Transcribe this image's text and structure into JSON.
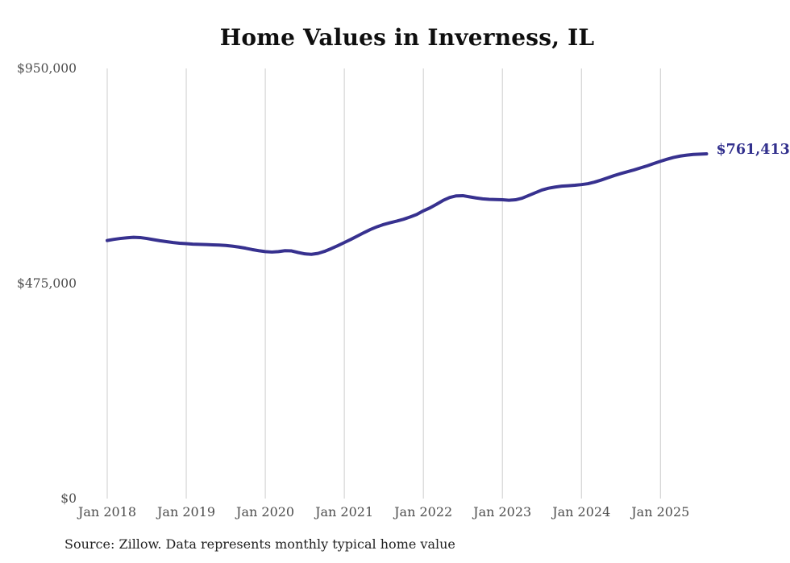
{
  "title": "Home Values in Inverness, IL",
  "current_value_label": "$761,413",
  "source_note": "Source: Zillow. Data represents monthly typical home value",
  "colors": {
    "line": "#37318f",
    "value_label": "#32308d",
    "grid": "#cccccc",
    "tick_text": "#4d4d4d",
    "title_text": "#0f0f0f",
    "source_text": "#222222",
    "background": "#ffffff"
  },
  "chart_data": {
    "type": "line",
    "title": "Home Values in Inverness, IL",
    "xlabel": "",
    "ylabel": "",
    "ylim": [
      0,
      950000
    ],
    "grid": "vertical-only",
    "legend": "none",
    "start_month": "2018-01",
    "end_month": "2025-08",
    "y_ticks": [
      {
        "value": 0,
        "label": "$0"
      },
      {
        "value": 475000,
        "label": "$475,000"
      },
      {
        "value": 950000,
        "label": "$950,000"
      }
    ],
    "x_ticks": [
      "Jan 2018",
      "Jan 2019",
      "Jan 2020",
      "Jan 2021",
      "Jan 2022",
      "Jan 2023",
      "Jan 2024",
      "Jan 2025"
    ],
    "x_tick_month_indices": [
      0,
      12,
      24,
      36,
      48,
      60,
      72,
      84
    ],
    "series": [
      {
        "name": "Typical home value (monthly)",
        "last_value": 761413,
        "values": [
          570000,
          572500,
          574500,
          576000,
          577000,
          576500,
          574500,
          572000,
          569500,
          567500,
          565500,
          564000,
          563000,
          562000,
          561500,
          561000,
          560500,
          560000,
          559000,
          557500,
          555500,
          553000,
          550000,
          547500,
          545500,
          544500,
          545500,
          547500,
          547000,
          543500,
          540500,
          539500,
          541500,
          546000,
          552000,
          558500,
          565500,
          572500,
          580000,
          587500,
          594500,
          600500,
          605500,
          609500,
          613000,
          617000,
          622000,
          627500,
          635500,
          642000,
          650000,
          658500,
          665000,
          668500,
          669000,
          666500,
          664000,
          662000,
          661000,
          660500,
          660000,
          659000,
          660000,
          663500,
          669500,
          675500,
          681500,
          685500,
          688000,
          690000,
          691000,
          692000,
          693500,
          695500,
          699000,
          703500,
          708500,
          713500,
          718000,
          722000,
          726000,
          730500,
          735000,
          740000,
          745000,
          749500,
          753500,
          756500,
          758500,
          760000,
          760800,
          761413
        ]
      }
    ]
  }
}
